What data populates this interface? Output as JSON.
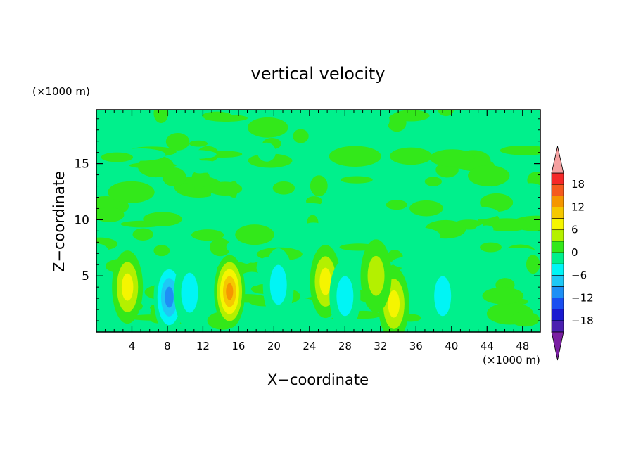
{
  "chart_data": {
    "type": "heatmap",
    "title": "vertical velocity",
    "xlabel": "X−coordinate",
    "ylabel": "Z−coordinate",
    "x_unit_label": "(×1000 m)",
    "y_unit_label": "(×1000 m)",
    "xlim": [
      0,
      50
    ],
    "ylim": [
      0,
      19.8
    ],
    "x_ticks": [
      4,
      8,
      12,
      16,
      20,
      24,
      28,
      32,
      36,
      40,
      44,
      48
    ],
    "y_ticks": [
      5,
      10,
      15
    ],
    "colorbar": {
      "tick_labels": [
        "18",
        "12",
        "6",
        "0",
        "−6",
        "−12",
        "−18"
      ],
      "tick_values": [
        18,
        12,
        6,
        0,
        -6,
        -12,
        -18
      ],
      "levels": [
        -21,
        -18,
        -15,
        -12,
        -9,
        -6,
        -3,
        0,
        3,
        6,
        9,
        12,
        15,
        18,
        21
      ],
      "colors": [
        "#7a1fa2",
        "#4a1fb0",
        "#1a1ad0",
        "#1a4ef0",
        "#1e8ff5",
        "#1ec8f5",
        "#00f5f5",
        "#00f08c",
        "#33e81a",
        "#b4f000",
        "#f5f500",
        "#f5c800",
        "#f59600",
        "#f55a1e",
        "#f52828",
        "#f5a0a0"
      ]
    },
    "features": [
      {
        "x": 3.5,
        "z": 4.0,
        "peak": 8
      },
      {
        "x": 8.2,
        "z": 3.1,
        "peak": -9
      },
      {
        "x": 15.0,
        "z": 3.6,
        "peak": 12
      },
      {
        "x": 20.5,
        "z": 4.2,
        "peak": -5
      },
      {
        "x": 25.8,
        "z": 4.5,
        "peak": 8
      },
      {
        "x": 28.0,
        "z": 3.2,
        "peak": -4
      },
      {
        "x": 33.5,
        "z": 2.5,
        "peak": 7
      },
      {
        "x": 39.0,
        "z": 3.2,
        "peak": -4
      },
      {
        "x": 10.5,
        "z": 3.5,
        "peak": -3
      },
      {
        "x": 31.5,
        "z": 5.0,
        "peak": 3
      }
    ],
    "grid": false,
    "legend": "right colorbar"
  }
}
